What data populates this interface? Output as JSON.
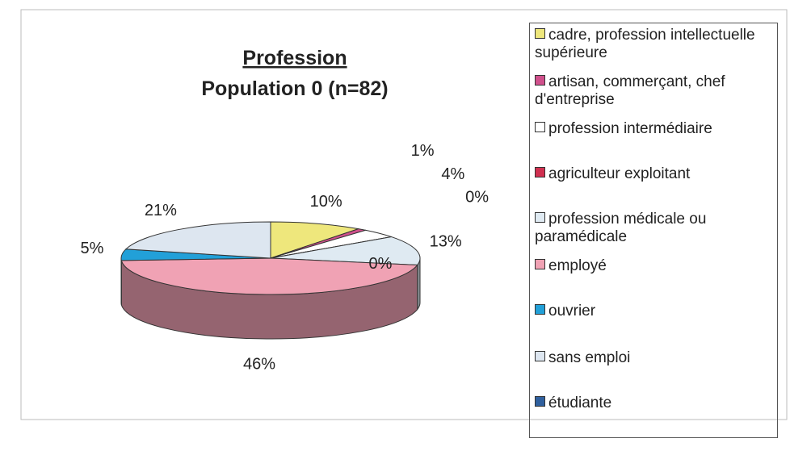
{
  "chart_data": {
    "type": "pie3d",
    "title": "Profession",
    "subtitle": "Population 0  (n=82)",
    "categories": [
      "cadre, profession intellectuelle supérieure",
      "artisan, commerçant, chef d'entreprise",
      "profession intermédiaire",
      "agriculteur exploitant",
      "profession médicale ou paramédicale",
      "employé",
      "ouvrier",
      "sans emploi",
      "étudiante"
    ],
    "values": [
      10,
      1,
      4,
      0,
      13,
      46,
      5,
      21,
      0
    ],
    "value_labels": [
      "10%",
      "1%",
      "4%",
      "0%",
      "13%",
      "46%",
      "5%",
      "21%",
      "0%"
    ],
    "colors": [
      "#eee77c",
      "#d0508c",
      "#ffffff",
      "#d03050",
      "#dfeaf2",
      "#f0a2b4",
      "#22a0d8",
      "#dde6f0",
      "#30609e"
    ],
    "legend": "right"
  }
}
